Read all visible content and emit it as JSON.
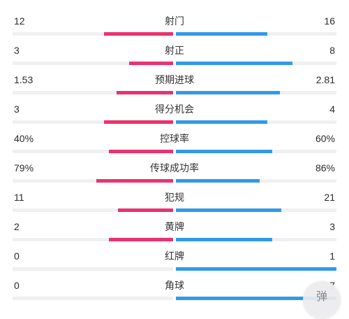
{
  "colors": {
    "home": "#e8336d",
    "away": "#3399e8"
  },
  "stats": [
    {
      "label": "射门",
      "home": "12",
      "away": "16",
      "home_share": 0.429,
      "away_share": 0.571
    },
    {
      "label": "射正",
      "home": "3",
      "away": "8",
      "home_share": 0.273,
      "away_share": 0.727
    },
    {
      "label": "预期进球",
      "home": "1.53",
      "away": "2.81",
      "home_share": 0.353,
      "away_share": 0.647
    },
    {
      "label": "得分机会",
      "home": "3",
      "away": "4",
      "home_share": 0.429,
      "away_share": 0.571
    },
    {
      "label": "控球率",
      "home": "40%",
      "away": "60%",
      "home_share": 0.4,
      "away_share": 0.6
    },
    {
      "label": "传球成功率",
      "home": "79%",
      "away": "86%",
      "home_share": 0.479,
      "away_share": 0.521
    },
    {
      "label": "犯规",
      "home": "11",
      "away": "21",
      "home_share": 0.344,
      "away_share": 0.656
    },
    {
      "label": "黄牌",
      "home": "2",
      "away": "3",
      "home_share": 0.4,
      "away_share": 0.6
    },
    {
      "label": "红牌",
      "home": "0",
      "away": "1",
      "home_share": 0.0,
      "away_share": 1.0
    },
    {
      "label": "角球",
      "home": "0",
      "away": "7",
      "home_share": 0.0,
      "away_share": 1.0
    }
  ],
  "watermark": {
    "text": "弹"
  }
}
